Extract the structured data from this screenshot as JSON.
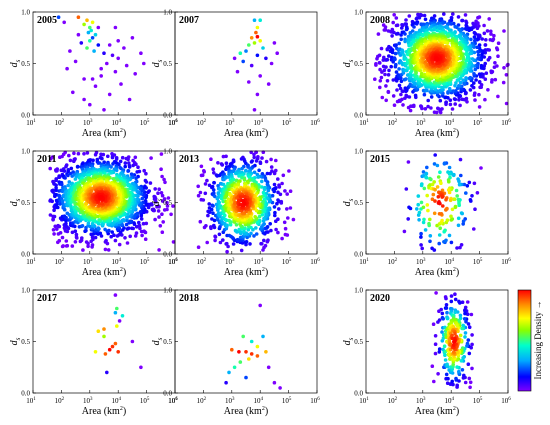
{
  "chart_data": {
    "type": "scatter",
    "figure": "3x3 panels of log-area vs d_s density scatter plots",
    "shared": {
      "xlabel": "Area (km²)",
      "ylabel": "d_s",
      "xscale": "log",
      "xlim": [
        10,
        1000000
      ],
      "ylim": [
        0,
        1
      ],
      "x_ticks": [
        "10^1",
        "10^2",
        "10^3",
        "10^4",
        "10^5",
        "10^6"
      ],
      "y_ticks": [
        "0.0",
        "0.5",
        "1.0"
      ],
      "colorbar_label": "Increasing Density →",
      "colormap": [
        "#7f00ff",
        "#0000ff",
        "#00aaff",
        "#00ffcc",
        "#88ff00",
        "#ffff00",
        "#ff8800",
        "#ff0000"
      ]
    },
    "panels": [
      {
        "year": "2005",
        "points": [
          [
            1.9,
            0.95,
            0.2
          ],
          [
            2.6,
            0.95,
            0.9
          ],
          [
            2.9,
            0.92,
            0.8
          ],
          [
            3.1,
            0.9,
            0.7
          ],
          [
            2.8,
            0.88,
            0.6
          ],
          [
            3.0,
            0.85,
            0.5
          ],
          [
            3.05,
            0.82,
            0.4
          ],
          [
            2.95,
            0.8,
            0.3
          ],
          [
            3.2,
            0.78,
            0.35
          ],
          [
            3.1,
            0.75,
            0.2
          ],
          [
            3.0,
            0.72,
            0.45
          ],
          [
            2.7,
            0.7,
            0.1
          ],
          [
            3.3,
            0.68,
            0.15
          ],
          [
            2.9,
            0.65,
            0.5
          ],
          [
            3.15,
            0.62,
            0.3
          ],
          [
            3.5,
            0.6,
            0.1
          ],
          [
            3.8,
            0.58,
            0.05
          ],
          [
            4.0,
            0.55,
            0.0
          ],
          [
            2.5,
            0.52,
            0.0
          ],
          [
            3.6,
            0.5,
            0.0
          ],
          [
            4.3,
            0.48,
            0.0
          ],
          [
            2.2,
            0.45,
            0.0
          ],
          [
            3.9,
            0.42,
            0.0
          ],
          [
            4.6,
            0.4,
            0.0
          ],
          [
            3.4,
            0.38,
            0.0
          ],
          [
            2.8,
            0.35,
            0.0
          ],
          [
            4.1,
            0.3,
            0.0
          ],
          [
            3.2,
            0.28,
            0.0
          ],
          [
            2.4,
            0.22,
            0.0
          ],
          [
            3.7,
            0.2,
            0.0
          ],
          [
            4.4,
            0.15,
            0.0
          ],
          [
            3.0,
            0.1,
            0.0
          ],
          [
            3.5,
            0.05,
            0.0
          ],
          [
            4.0,
            0.72,
            0.0
          ],
          [
            4.2,
            0.65,
            0.0
          ],
          [
            3.3,
            0.85,
            0.0
          ],
          [
            2.6,
            0.78,
            0.0
          ],
          [
            4.8,
            0.6,
            0.0
          ],
          [
            3.9,
            0.85,
            0.0
          ],
          [
            2.3,
            0.62,
            0.0
          ],
          [
            3.4,
            0.45,
            0.0
          ],
          [
            4.5,
            0.75,
            0.0
          ],
          [
            2.1,
            0.9,
            0.0
          ],
          [
            3.7,
            0.68,
            0.0
          ],
          [
            4.9,
            0.5,
            0.0
          ],
          [
            2.8,
            0.15,
            0.0
          ],
          [
            3.1,
            0.35,
            0.0
          ]
        ]
      },
      {
        "year": "2007",
        "points": [
          [
            3.8,
            0.92,
            0.3
          ],
          [
            4.0,
            0.92,
            0.4
          ],
          [
            3.9,
            0.85,
            0.7
          ],
          [
            3.85,
            0.8,
            0.9
          ],
          [
            3.9,
            0.76,
            1.0
          ],
          [
            3.7,
            0.75,
            0.85
          ],
          [
            4.0,
            0.72,
            0.7
          ],
          [
            3.8,
            0.7,
            0.6
          ],
          [
            3.6,
            0.68,
            0.5
          ],
          [
            4.1,
            0.65,
            0.35
          ],
          [
            3.5,
            0.62,
            0.25
          ],
          [
            3.3,
            0.6,
            0.45
          ],
          [
            3.9,
            0.58,
            0.15
          ],
          [
            4.2,
            0.55,
            0.1
          ],
          [
            3.4,
            0.52,
            0.2
          ],
          [
            4.4,
            0.5,
            0.0
          ],
          [
            3.7,
            0.48,
            0.05
          ],
          [
            3.2,
            0.42,
            0.0
          ],
          [
            4.0,
            0.38,
            0.0
          ],
          [
            3.6,
            0.32,
            0.0
          ],
          [
            4.3,
            0.3,
            0.0
          ],
          [
            3.9,
            0.2,
            0.0
          ],
          [
            3.8,
            0.05,
            0.0
          ],
          [
            4.5,
            0.7,
            0.0
          ],
          [
            4.6,
            0.6,
            0.0
          ],
          [
            3.1,
            0.55,
            0.0
          ]
        ]
      },
      {
        "year": "2008",
        "dense": true,
        "n": 1500,
        "cx": 3.5,
        "sx": 0.9,
        "cy": 0.55,
        "sy": 0.22,
        "xmin": 1.3,
        "xmax": 6.0
      },
      {
        "year": "2011",
        "dense": true,
        "n": 1500,
        "cx": 3.4,
        "sx": 0.9,
        "cy": 0.55,
        "sy": 0.2,
        "xmin": 1.6,
        "xmax": 6.0
      },
      {
        "year": "2013",
        "dense": true,
        "n": 800,
        "cx": 3.4,
        "sx": 0.65,
        "cy": 0.5,
        "sy": 0.22,
        "xmin": 1.8,
        "xmax": 5.4
      },
      {
        "year": "2015",
        "dense": true,
        "n": 170,
        "cx": 3.6,
        "sx": 0.6,
        "cy": 0.5,
        "sy": 0.25,
        "xmin": 1.8,
        "xmax": 5.7
      },
      {
        "year": "2017",
        "points": [
          [
            3.9,
            0.95,
            0.0
          ],
          [
            3.95,
            0.82,
            0.5
          ],
          [
            3.9,
            0.78,
            0.3
          ],
          [
            4.15,
            0.75,
            0.4
          ],
          [
            4.05,
            0.7,
            0.0
          ],
          [
            3.95,
            0.65,
            0.7
          ],
          [
            3.5,
            0.62,
            0.85
          ],
          [
            3.3,
            0.6,
            0.75
          ],
          [
            3.5,
            0.55,
            0.6
          ],
          [
            4.5,
            0.5,
            0.0
          ],
          [
            3.9,
            0.48,
            0.9
          ],
          [
            3.8,
            0.45,
            0.95
          ],
          [
            3.7,
            0.42,
            1.0
          ],
          [
            3.2,
            0.4,
            0.7
          ],
          [
            3.55,
            0.38,
            0.9
          ],
          [
            4.0,
            0.4,
            0.95
          ],
          [
            4.8,
            0.25,
            0.0
          ],
          [
            3.6,
            0.2,
            0.1
          ]
        ]
      },
      {
        "year": "2018",
        "points": [
          [
            4.0,
            0.85,
            0.0
          ],
          [
            3.4,
            0.55,
            0.5
          ],
          [
            4.1,
            0.55,
            0.3
          ],
          [
            3.7,
            0.5,
            0.4
          ],
          [
            3.9,
            0.45,
            0.7
          ],
          [
            3.0,
            0.42,
            0.9
          ],
          [
            3.5,
            0.4,
            0.95
          ],
          [
            3.25,
            0.4,
            1.0
          ],
          [
            3.7,
            0.38,
            0.95
          ],
          [
            3.9,
            0.36,
            0.9
          ],
          [
            4.2,
            0.4,
            0.8
          ],
          [
            3.6,
            0.33,
            0.75
          ],
          [
            3.3,
            0.3,
            0.5
          ],
          [
            3.1,
            0.25,
            0.45
          ],
          [
            2.9,
            0.2,
            0.3
          ],
          [
            3.5,
            0.15,
            0.2
          ],
          [
            2.8,
            0.1,
            0.1
          ],
          [
            4.3,
            0.25,
            0.0
          ],
          [
            4.5,
            0.1,
            0.0
          ],
          [
            4.7,
            0.05,
            0.0
          ]
        ]
      },
      {
        "year": "2020",
        "dense": true,
        "n": 260,
        "cx": 4.1,
        "sx": 0.3,
        "cy": 0.5,
        "sy": 0.22,
        "xmin": 2.3,
        "xmax": 5.1
      }
    ]
  }
}
